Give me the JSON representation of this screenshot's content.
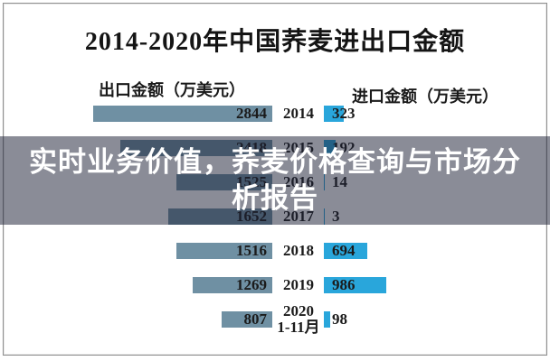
{
  "title": "2014-2020年中国荞麦进出口金额",
  "headers": {
    "export": "出口金额（万美元）",
    "import": "进口金额（万美元）"
  },
  "overlay": {
    "line1": "实时业务价值，荞麦价格查询与市场分",
    "line2": "析报告",
    "full_text": "实时业务价值，荞麦价格查询与市场分析报告",
    "background": "rgba(30,35,55,0.52)",
    "text_color": "#ffffff"
  },
  "colors": {
    "export_bar": "#6F90A3",
    "import_bar": "#29A6DB",
    "label_text": "#1b1b1b",
    "panel_border": "#8f8f8f",
    "background": "#ffffff"
  },
  "chart_data": {
    "type": "bar",
    "orientation": "diverging-horizontal",
    "title": "2014-2020年中国荞麦进出口金额",
    "units": "万美元",
    "categories": [
      "2014",
      "2015",
      "2016",
      "2017",
      "2018",
      "2019",
      "2020 1-11月"
    ],
    "categories_display": [
      [
        "2014"
      ],
      [
        "2015"
      ],
      [
        "2016"
      ],
      [
        "2017"
      ],
      [
        "2018"
      ],
      [
        "2019"
      ],
      [
        "2020",
        "1-11月"
      ]
    ],
    "series": [
      {
        "name": "出口金额（万美元）",
        "side": "left",
        "values": [
          2844,
          2418,
          1525,
          1652,
          1516,
          1269,
          807
        ]
      },
      {
        "name": "进口金额（万美元）",
        "side": "right",
        "values": [
          323,
          192,
          14,
          3,
          694,
          986,
          98
        ]
      }
    ],
    "value_labels_shown": true,
    "grid": false,
    "legend_position": "top (as column headers)"
  }
}
